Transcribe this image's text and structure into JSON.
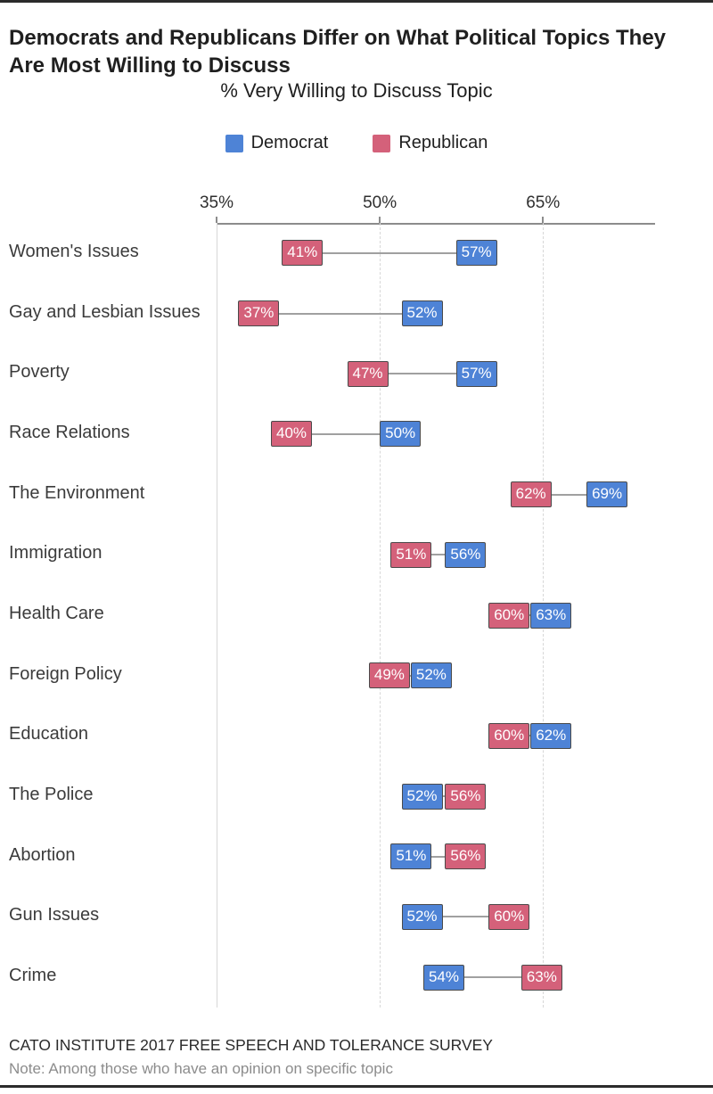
{
  "page": {
    "title": "Democrats and Republicans Differ on What Political Topics They Are Most Willing to Discuss",
    "subtitle": "% Very Willing to Discuss Topic",
    "source": "CATO INSTITUTE 2017 FREE SPEECH AND TOLERANCE SURVEY",
    "note": "Note: Among those who have an opinion on specific topic"
  },
  "legend": [
    {
      "id": "democrat",
      "label": "Democrat",
      "color": "#4e83d6"
    },
    {
      "id": "republican",
      "label": "Republican",
      "color": "#d4617a"
    }
  ],
  "colors": {
    "democrat": "#4e83d6",
    "republican": "#d4617a",
    "box_border": "#4a4a4a",
    "connector": "#a0a0a0",
    "grid": "#d7d7d7",
    "axis": "#8c8c8c"
  },
  "chart_data": {
    "type": "scatter",
    "variant": "dumbbell",
    "title": "% Very Willing to Discuss Topic",
    "xlabel": "",
    "ylabel": "",
    "legend_position": "top",
    "grid": "vertical",
    "axis": {
      "ticks": [
        35,
        50,
        65
      ],
      "tick_labels": [
        "35%",
        "50%",
        "65%"
      ],
      "domain": [
        35,
        75.3
      ],
      "unit": "%"
    },
    "value_suffix": "%",
    "series_names": [
      "Democrat",
      "Republican"
    ],
    "topics": [
      {
        "label": "Women's Issues",
        "democrat": 57,
        "republican": 41
      },
      {
        "label": "Gay and Lesbian Issues",
        "democrat": 52,
        "republican": 37
      },
      {
        "label": "Poverty",
        "democrat": 57,
        "republican": 47
      },
      {
        "label": "Race Relations",
        "democrat": 50,
        "republican": 40
      },
      {
        "label": "The Environment",
        "democrat": 69,
        "republican": 62
      },
      {
        "label": "Immigration",
        "democrat": 56,
        "republican": 51
      },
      {
        "label": "Health Care",
        "democrat": 63,
        "republican": 60
      },
      {
        "label": "Foreign Policy",
        "democrat": 52,
        "republican": 49
      },
      {
        "label": "Education",
        "democrat": 62,
        "republican": 60
      },
      {
        "label": "The Police",
        "democrat": 52,
        "republican": 56
      },
      {
        "label": "Abortion",
        "democrat": 51,
        "republican": 56
      },
      {
        "label": "Gun Issues",
        "democrat": 52,
        "republican": 60
      },
      {
        "label": "Crime",
        "democrat": 54,
        "republican": 63
      }
    ]
  }
}
